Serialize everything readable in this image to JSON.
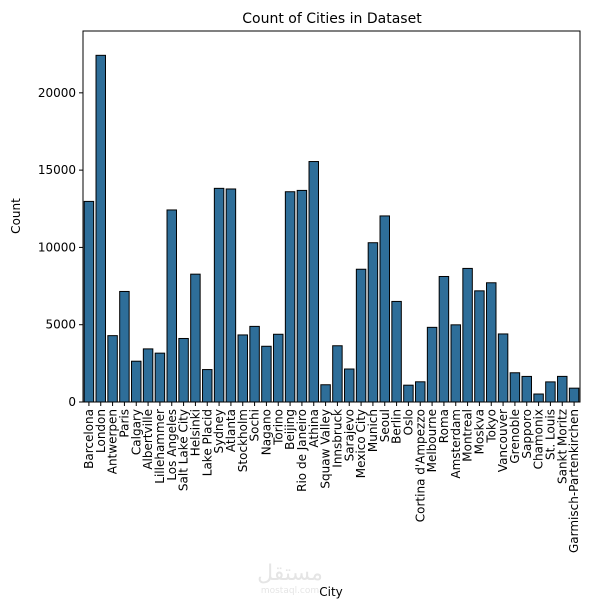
{
  "chart_data": {
    "type": "bar",
    "title": "Count of Cities in Dataset",
    "xlabel": "City",
    "ylabel": "Count",
    "ylim": [
      0,
      24000
    ],
    "yticks": [
      0,
      5000,
      10000,
      15000,
      20000
    ],
    "grid": false,
    "legend": "none",
    "bar_color": "#2e6e99",
    "edge_color": "#000000",
    "categories": [
      "Barcelona",
      "London",
      "Antwerpen",
      "Paris",
      "Calgary",
      "Albertville",
      "Lillehammer",
      "Los Angeles",
      "Salt Lake City",
      "Helsinki",
      "Lake Placid",
      "Sydney",
      "Atlanta",
      "Stockholm",
      "Sochi",
      "Nagano",
      "Torino",
      "Beijing",
      "Rio de Janeiro",
      "Athina",
      "Squaw Valley",
      "Innsbruck",
      "Sarajevo",
      "Mexico City",
      "Munich",
      "Seoul",
      "Berlin",
      "Oslo",
      "Cortina d'Ampezzo",
      "Melbourne",
      "Roma",
      "Amsterdam",
      "Montreal",
      "Moskva",
      "Tokyo",
      "Vancouver",
      "Grenoble",
      "Sapporo",
      "Chamonix",
      "St. Louis",
      "Sankt Moritz",
      "Garmisch-Partenkirchen"
    ],
    "values": [
      12977,
      22426,
      4292,
      7151,
      2639,
      3436,
      3160,
      12423,
      4109,
      8270,
      2098,
      13821,
      13780,
      4338,
      4891,
      3605,
      4382,
      13602,
      13688,
      15556,
      1116,
      3639,
      2134,
      8588,
      10304,
      12037,
      6506,
      1088,
      1307,
      4829,
      8119,
      4992,
      8641,
      7191,
      7713,
      4402,
      1891,
      1655,
      517,
      1301,
      1657,
      895
    ]
  },
  "watermark": {
    "logo_text": "مستقل",
    "site": "mostaql.com"
  }
}
